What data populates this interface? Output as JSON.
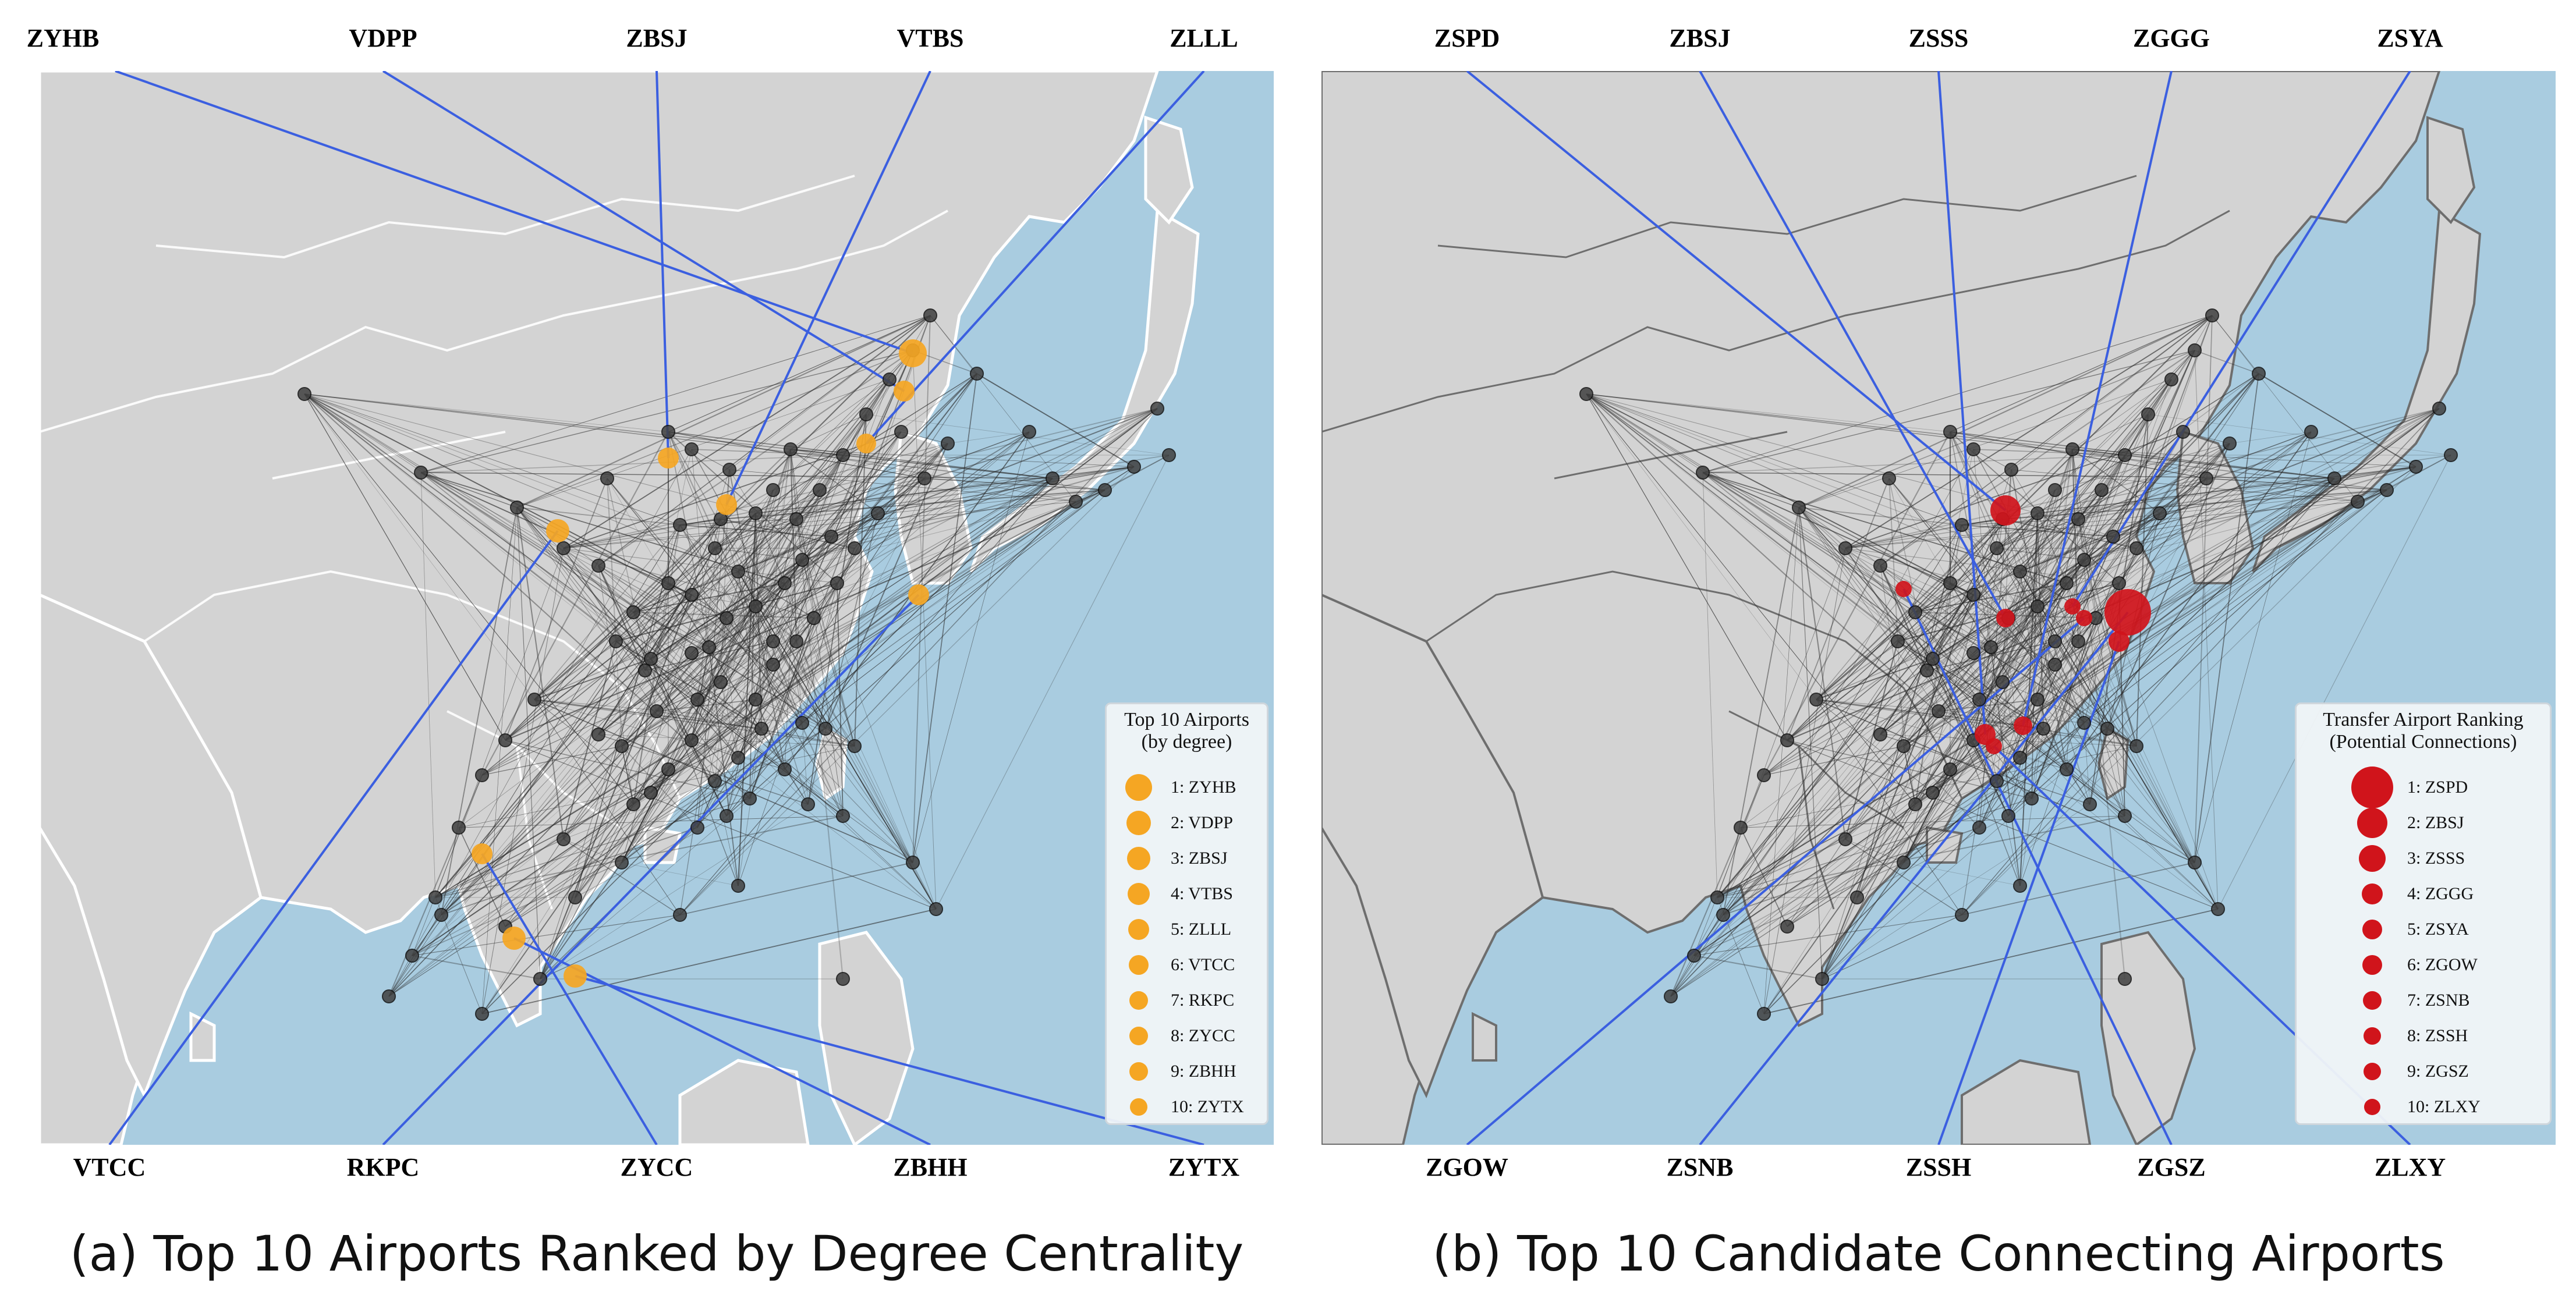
{
  "panel_a": {
    "top_labels": [
      "ZYHB",
      "VDPP",
      "ZBSJ",
      "VTBS",
      "ZLLL"
    ],
    "bottom_labels": [
      "VTCC",
      "RKPC",
      "ZYCC",
      "ZBHH",
      "ZYTX"
    ],
    "legend_title_1": "Top 10 Airports",
    "legend_title_2": "(by degree)",
    "legend_items": [
      "1: ZYHB",
      "2: VDPP",
      "3: ZBSJ",
      "4: VTBS",
      "5: ZLLL",
      "6: VTCC",
      "7: RKPC",
      "8: ZYCC",
      "9: ZBHH",
      "10: ZYTX"
    ],
    "caption": "(a) Top 10 Airports Ranked by Degree Centrality",
    "highlight_color": "#f5a623",
    "line_color": "#3b5fe0"
  },
  "panel_b": {
    "top_labels": [
      "ZSPD",
      "ZBSJ",
      "ZSSS",
      "ZGGG",
      "ZSYA"
    ],
    "bottom_labels": [
      "ZGOW",
      "ZSNB",
      "ZSSH",
      "ZGSZ",
      "ZLXY"
    ],
    "legend_title_1": "Transfer Airport Ranking",
    "legend_title_2": "(Potential Connections)",
    "legend_items": [
      "1: ZSPD",
      "2: ZBSJ",
      "3: ZSSS",
      "4: ZGGG",
      "5: ZSYA",
      "6: ZGOW",
      "7: ZSNB",
      "8: ZSSH",
      "9: ZGSZ",
      "10: ZLXY"
    ],
    "caption": "(b) Top 10 Candidate Connecting Airports",
    "highlight_color": "#d0141b",
    "line_color": "#3b5fe0"
  },
  "colors": {
    "ocean": "#a9cce0",
    "land": "#d3d3d3",
    "node": "#404040"
  }
}
